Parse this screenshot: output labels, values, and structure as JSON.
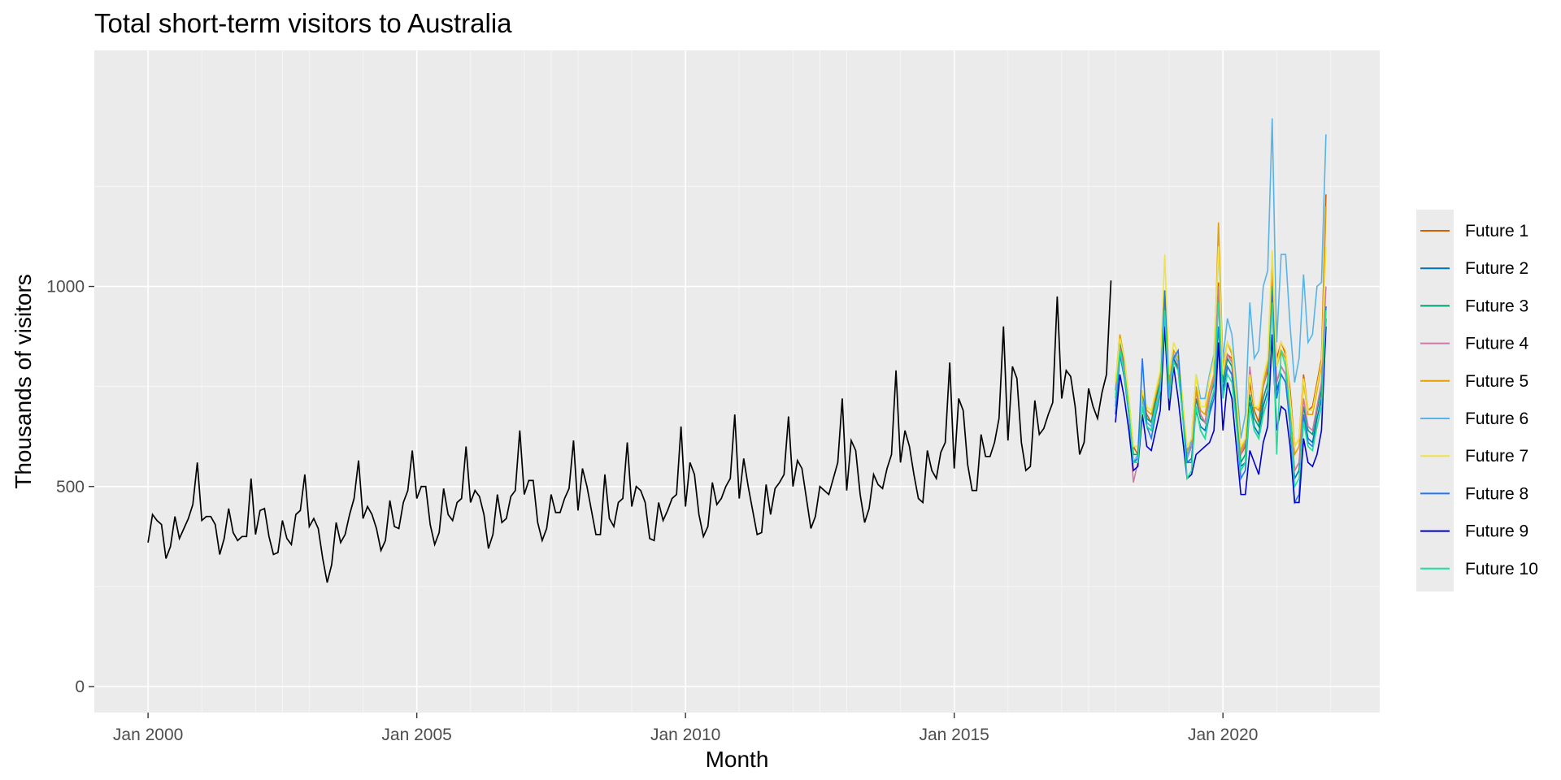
{
  "chart_data": {
    "type": "line",
    "title": "Total short-term visitors to Australia",
    "xlabel": "Month",
    "ylabel": "Thousands of visitors",
    "xlim": [
      "1999-01",
      "2022-12"
    ],
    "ylim": [
      -65,
      1590
    ],
    "x_ticks": [
      {
        "date": "2000-01",
        "label": "Jan 2000"
      },
      {
        "date": "2005-01",
        "label": "Jan 2005"
      },
      {
        "date": "2010-01",
        "label": "Jan 2010"
      },
      {
        "date": "2015-01",
        "label": "Jan 2015"
      },
      {
        "date": "2020-01",
        "label": "Jan 2020"
      }
    ],
    "y_ticks": [
      {
        "value": 0,
        "label": "0"
      },
      {
        "value": 500,
        "label": "500"
      },
      {
        "value": 1000,
        "label": "1000"
      }
    ],
    "grid": true,
    "legend_position": "right",
    "history": {
      "color": "#000000",
      "start": "2000-01",
      "values": [
        360,
        430,
        415,
        405,
        320,
        350,
        425,
        370,
        395,
        420,
        455,
        560,
        415,
        425,
        425,
        405,
        330,
        370,
        445,
        385,
        365,
        375,
        375,
        520,
        380,
        440,
        445,
        375,
        330,
        335,
        415,
        370,
        355,
        430,
        440,
        530,
        400,
        420,
        395,
        320,
        260,
        305,
        410,
        360,
        380,
        430,
        470,
        565,
        420,
        450,
        430,
        395,
        340,
        365,
        465,
        400,
        395,
        460,
        490,
        590,
        470,
        500,
        500,
        405,
        355,
        385,
        495,
        430,
        415,
        460,
        470,
        600,
        460,
        490,
        475,
        430,
        345,
        380,
        480,
        410,
        420,
        475,
        490,
        640,
        480,
        515,
        515,
        410,
        365,
        395,
        480,
        435,
        435,
        470,
        495,
        615,
        440,
        545,
        500,
        440,
        380,
        380,
        530,
        420,
        400,
        460,
        470,
        610,
        450,
        500,
        490,
        460,
        370,
        365,
        460,
        415,
        440,
        470,
        480,
        650,
        450,
        560,
        530,
        430,
        375,
        400,
        510,
        455,
        470,
        500,
        520,
        680,
        470,
        570,
        500,
        440,
        380,
        385,
        505,
        430,
        495,
        510,
        530,
        675,
        500,
        565,
        545,
        470,
        395,
        425,
        500,
        490,
        480,
        520,
        560,
        720,
        490,
        615,
        590,
        480,
        410,
        445,
        530,
        505,
        495,
        545,
        580,
        790,
        560,
        640,
        600,
        530,
        470,
        460,
        590,
        540,
        520,
        585,
        610,
        810,
        545,
        720,
        690,
        555,
        490,
        490,
        630,
        575,
        575,
        610,
        670,
        900,
        615,
        800,
        770,
        610,
        540,
        550,
        715,
        630,
        645,
        680,
        710,
        975,
        720,
        790,
        775,
        700,
        580,
        610,
        745,
        700,
        670,
        735,
        780,
        1015
      ]
    },
    "futures": {
      "start": "2018-01",
      "series": [
        {
          "name": "Future 1",
          "color": "#D55E00",
          "values": [
            740,
            860,
            800,
            700,
            600,
            580,
            720,
            680,
            660,
            710,
            760,
            960,
            760,
            820,
            800,
            700,
            590,
            600,
            720,
            680,
            660,
            720,
            760,
            1010,
            780,
            830,
            820,
            700,
            580,
            600,
            760,
            690,
            660,
            750,
            790,
            1030,
            820,
            860,
            830,
            740,
            600,
            620,
            780,
            690,
            700,
            760,
            820,
            1230
          ]
        },
        {
          "name": "Future 2",
          "color": "#0072B2",
          "values": [
            700,
            840,
            780,
            690,
            560,
            560,
            700,
            650,
            640,
            700,
            740,
            940,
            720,
            820,
            790,
            680,
            560,
            570,
            690,
            650,
            640,
            690,
            740,
            980,
            740,
            800,
            780,
            670,
            550,
            560,
            710,
            650,
            630,
            700,
            740,
            990,
            740,
            780,
            760,
            660,
            520,
            540,
            680,
            620,
            610,
            670,
            720,
            920
          ]
        },
        {
          "name": "Future 3",
          "color": "#009E73",
          "values": [
            720,
            860,
            800,
            710,
            580,
            580,
            730,
            670,
            660,
            720,
            760,
            960,
            740,
            830,
            810,
            700,
            580,
            600,
            720,
            670,
            660,
            720,
            760,
            990,
            760,
            820,
            800,
            690,
            560,
            580,
            730,
            670,
            650,
            720,
            760,
            1000,
            760,
            800,
            780,
            680,
            540,
            560,
            700,
            640,
            630,
            690,
            740,
            950
          ]
        },
        {
          "name": "Future 4",
          "color": "#CC79A7",
          "values": [
            740,
            850,
            790,
            680,
            510,
            560,
            700,
            660,
            650,
            700,
            750,
            960,
            730,
            830,
            810,
            700,
            570,
            600,
            740,
            680,
            660,
            720,
            770,
            1000,
            780,
            830,
            810,
            720,
            580,
            610,
            800,
            700,
            700,
            750,
            800,
            1060,
            760,
            800,
            780,
            670,
            540,
            560,
            720,
            650,
            640,
            700,
            760,
            1000
          ]
        },
        {
          "name": "Future 5",
          "color": "#E69F00",
          "values": [
            760,
            880,
            820,
            720,
            600,
            600,
            740,
            690,
            680,
            730,
            780,
            990,
            760,
            840,
            820,
            710,
            590,
            610,
            750,
            690,
            680,
            740,
            780,
            1160,
            800,
            860,
            830,
            720,
            590,
            620,
            780,
            700,
            690,
            760,
            810,
            1060,
            800,
            840,
            820,
            720,
            580,
            600,
            760,
            680,
            680,
            740,
            800,
            1200
          ]
        },
        {
          "name": "Future 6",
          "color": "#56B4E9",
          "values": [
            700,
            830,
            780,
            680,
            560,
            580,
            720,
            660,
            650,
            700,
            750,
            960,
            740,
            830,
            810,
            720,
            570,
            620,
            780,
            720,
            720,
            780,
            830,
            1090,
            820,
            920,
            880,
            760,
            620,
            680,
            960,
            820,
            840,
            1000,
            1040,
            1420,
            860,
            1080,
            1080,
            900,
            760,
            820,
            1030,
            860,
            880,
            1000,
            1010,
            1380
          ]
        },
        {
          "name": "Future 7",
          "color": "#F0E442",
          "values": [
            760,
            870,
            820,
            720,
            600,
            600,
            740,
            700,
            690,
            740,
            790,
            1080,
            780,
            860,
            830,
            720,
            600,
            620,
            780,
            700,
            700,
            770,
            820,
            1100,
            780,
            860,
            840,
            720,
            600,
            620,
            780,
            700,
            700,
            770,
            820,
            1090,
            800,
            860,
            840,
            720,
            600,
            620,
            770,
            690,
            690,
            750,
            810,
            1100
          ]
        },
        {
          "name": "Future 8",
          "color": "#1F77F4",
          "values": [
            680,
            830,
            770,
            680,
            560,
            570,
            820,
            650,
            620,
            680,
            730,
            990,
            720,
            820,
            840,
            680,
            560,
            560,
            700,
            640,
            620,
            680,
            720,
            900,
            720,
            800,
            780,
            660,
            520,
            540,
            700,
            640,
            620,
            680,
            720,
            980,
            720,
            780,
            760,
            650,
            460,
            480,
            680,
            610,
            600,
            650,
            700,
            950
          ]
        },
        {
          "name": "Future 9",
          "color": "#0000CC",
          "values": [
            660,
            780,
            720,
            640,
            540,
            550,
            680,
            600,
            590,
            640,
            690,
            900,
            690,
            800,
            720,
            620,
            520,
            530,
            580,
            590,
            600,
            610,
            640,
            860,
            640,
            760,
            720,
            600,
            480,
            480,
            590,
            560,
            530,
            610,
            650,
            880,
            640,
            700,
            690,
            600,
            460,
            460,
            620,
            560,
            550,
            580,
            640,
            900
          ]
        },
        {
          "name": "Future 10",
          "color": "#1BE29A",
          "values": [
            720,
            840,
            780,
            690,
            560,
            560,
            700,
            650,
            640,
            690,
            740,
            940,
            720,
            810,
            790,
            680,
            520,
            540,
            700,
            640,
            620,
            700,
            740,
            960,
            720,
            780,
            760,
            660,
            540,
            560,
            700,
            640,
            620,
            680,
            720,
            960,
            580,
            840,
            800,
            680,
            500,
            520,
            660,
            600,
            590,
            650,
            700,
            940
          ]
        }
      ]
    }
  }
}
